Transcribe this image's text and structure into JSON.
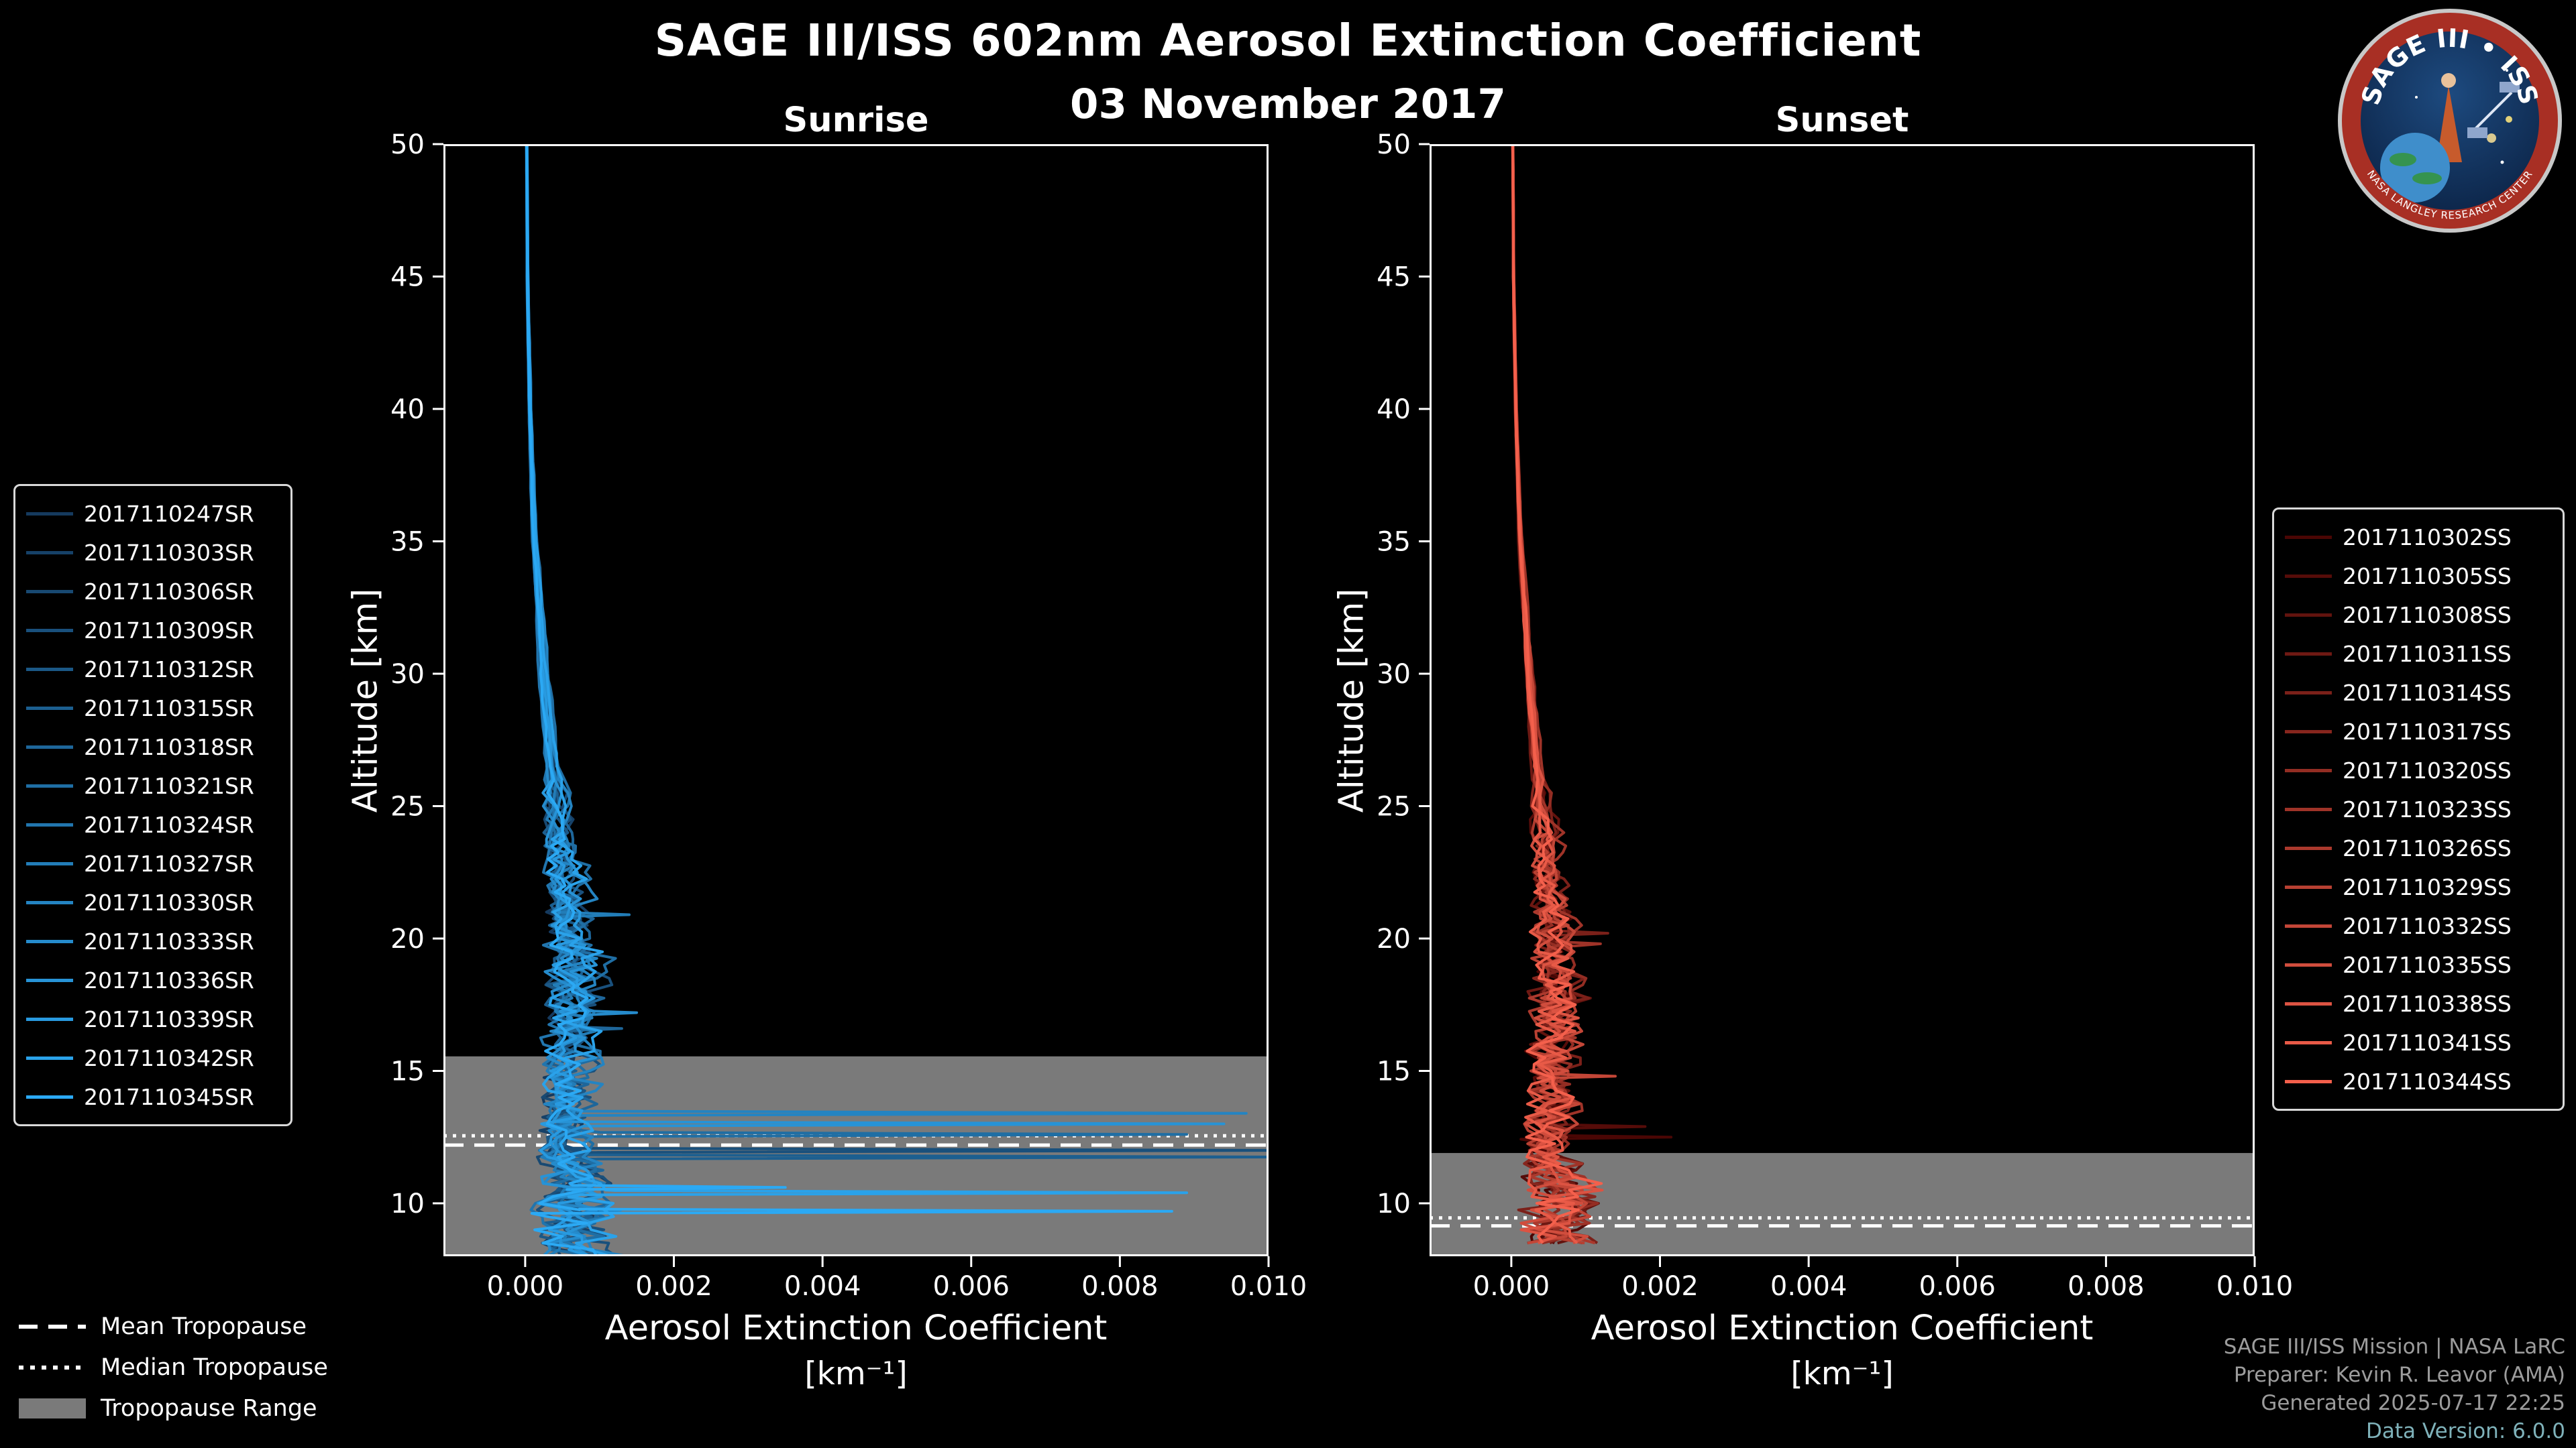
{
  "chart_data": {
    "type": "line",
    "title": "SAGE III/ISS 602nm Aerosol Extinction Coefficient",
    "subtitle": "03 November 2017",
    "style": {
      "background": "#000000",
      "axis_color": "#ffffff",
      "band_color": "#7a7a7a"
    },
    "base_profile": [
      [
        50,
        2e-05
      ],
      [
        45,
        3e-05
      ],
      [
        40,
        6e-05
      ],
      [
        35,
        0.00012
      ],
      [
        30,
        0.00024
      ],
      [
        27,
        0.00032
      ],
      [
        25,
        0.0004
      ],
      [
        23,
        0.00047
      ],
      [
        21,
        0.00054
      ],
      [
        20,
        0.00058
      ],
      [
        19,
        0.00062
      ],
      [
        18,
        0.00063
      ],
      [
        17,
        0.0006
      ],
      [
        16,
        0.00055
      ],
      [
        15,
        0.00052
      ],
      [
        14,
        0.00056
      ],
      [
        13,
        0.0005
      ],
      [
        12,
        0.00046
      ],
      [
        11,
        0.00058
      ],
      [
        10,
        0.0007
      ],
      [
        9,
        0.0006
      ],
      [
        8,
        0.00075
      ]
    ],
    "panels": [
      {
        "id": "sunrise",
        "title": "Sunrise",
        "xlabel": "Aerosol Extinction Coefficient",
        "xunit": "[km⁻¹]",
        "ylabel": "Altitude [km]",
        "xlim": [
          -0.0011,
          0.01
        ],
        "ylim": [
          8,
          50
        ],
        "alt_min": 8.0,
        "xtick_values": [
          0,
          0.002,
          0.004,
          0.006,
          0.008,
          0.01
        ],
        "xtick_labels": [
          "0.000",
          "0.002",
          "0.004",
          "0.006",
          "0.008",
          "0.010"
        ],
        "ytick_values": [
          10,
          15,
          20,
          25,
          30,
          35,
          40,
          45,
          50
        ],
        "tropopause": {
          "range_km": [
            8,
            15.55
          ],
          "mean_km": 12.2,
          "median_km": 12.55
        },
        "series": [
          {
            "name": "2017110247SR",
            "color": "#153a5e",
            "mult": 0.95,
            "seed": 1,
            "spikes": []
          },
          {
            "name": "2017110303SR",
            "color": "#164168",
            "mult": 1.1,
            "seed": 2,
            "spikes": []
          },
          {
            "name": "2017110306SR",
            "color": "#184972",
            "mult": 0.85,
            "seed": 3,
            "spikes": []
          },
          {
            "name": "2017110309SR",
            "color": "#19507c",
            "mult": 1.2,
            "seed": 4,
            "spikes": [
              [
                12.0,
                0.0102
              ]
            ]
          },
          {
            "name": "2017110312SR",
            "color": "#1b5886",
            "mult": 1.0,
            "seed": 5,
            "spikes": []
          },
          {
            "name": "2017110315SR",
            "color": "#1c5f90",
            "mult": 0.9,
            "seed": 6,
            "spikes": [
              [
                11.75,
                0.0102
              ]
            ]
          },
          {
            "name": "2017110318SR",
            "color": "#1e669a",
            "mult": 1.15,
            "seed": 7,
            "spikes": [
              [
                16.6,
                0.0013
              ]
            ]
          },
          {
            "name": "2017110321SR",
            "color": "#1f6ea4",
            "mult": 1.3,
            "seed": 8,
            "spikes": [
              [
                12.6,
                0.0089
              ]
            ]
          },
          {
            "name": "2017110324SR",
            "color": "#2175ae",
            "mult": 0.8,
            "seed": 9,
            "spikes": []
          },
          {
            "name": "2017110327SR",
            "color": "#227db8",
            "mult": 1.05,
            "seed": 10,
            "spikes": [
              [
                20.9,
                0.0014
              ]
            ]
          },
          {
            "name": "2017110330SR",
            "color": "#2484c2",
            "mult": 1.25,
            "seed": 11,
            "spikes": [
              [
                13.4,
                0.0097
              ]
            ]
          },
          {
            "name": "2017110333SR",
            "color": "#258bcc",
            "mult": 0.9,
            "seed": 12,
            "spikes": [
              [
                17.2,
                0.0015
              ]
            ]
          },
          {
            "name": "2017110336SR",
            "color": "#2793d6",
            "mult": 1.1,
            "seed": 13,
            "spikes": [
              [
                13.0,
                0.0094
              ]
            ]
          },
          {
            "name": "2017110339SR",
            "color": "#289ae0",
            "mult": 1.0,
            "seed": 14,
            "spikes": []
          },
          {
            "name": "2017110342SR",
            "color": "#2aa2ea",
            "mult": 1.2,
            "seed": 15,
            "spikes": [
              [
                10.4,
                0.0089
              ]
            ]
          },
          {
            "name": "2017110345SR",
            "color": "#2ba9f4",
            "mult": 0.95,
            "seed": 16,
            "spikes": [
              [
                9.7,
                0.0087
              ],
              [
                10.6,
                0.0035
              ]
            ]
          }
        ]
      },
      {
        "id": "sunset",
        "title": "Sunset",
        "xlabel": "Aerosol Extinction Coefficient",
        "xunit": "[km⁻¹]",
        "ylabel": "Altitude [km]",
        "xlim": [
          -0.0011,
          0.01
        ],
        "ylim": [
          8,
          50
        ],
        "alt_min": 8.35,
        "xtick_values": [
          0,
          0.002,
          0.004,
          0.006,
          0.008,
          0.01
        ],
        "xtick_labels": [
          "0.000",
          "0.002",
          "0.004",
          "0.006",
          "0.008",
          "0.010"
        ],
        "ytick_values": [
          10,
          15,
          20,
          25,
          30,
          35,
          40,
          45,
          50
        ],
        "tropopause": {
          "range_km": [
            8,
            11.9
          ],
          "mean_km": 9.15,
          "median_km": 9.45
        },
        "series": [
          {
            "name": "2017110302SS",
            "color": "#4a0604",
            "mult": 1.0,
            "seed": 21,
            "spikes": [
              [
                12.5,
                0.00215
              ]
            ]
          },
          {
            "name": "2017110305SS",
            "color": "#560c09",
            "mult": 0.9,
            "seed": 22,
            "spikes": [
              [
                12.9,
                0.0018
              ]
            ]
          },
          {
            "name": "2017110308SS",
            "color": "#62130e",
            "mult": 1.1,
            "seed": 23,
            "spikes": []
          },
          {
            "name": "2017110311SS",
            "color": "#6e1913",
            "mult": 0.85,
            "seed": 24,
            "spikes": []
          },
          {
            "name": "2017110314SS",
            "color": "#7b2019",
            "mult": 1.15,
            "seed": 25,
            "spikes": [
              [
                20.2,
                0.0013
              ]
            ]
          },
          {
            "name": "2017110317SS",
            "color": "#87261e",
            "mult": 0.95,
            "seed": 26,
            "spikes": []
          },
          {
            "name": "2017110320SS",
            "color": "#932d23",
            "mult": 1.05,
            "seed": 27,
            "spikes": []
          },
          {
            "name": "2017110323SS",
            "color": "#9f3328",
            "mult": 1.2,
            "seed": 28,
            "spikes": [
              [
                19.8,
                0.0012
              ]
            ]
          },
          {
            "name": "2017110326SS",
            "color": "#ab392d",
            "mult": 0.9,
            "seed": 29,
            "spikes": []
          },
          {
            "name": "2017110329SS",
            "color": "#b74032",
            "mult": 1.0,
            "seed": 30,
            "spikes": []
          },
          {
            "name": "2017110332SS",
            "color": "#c34637",
            "mult": 1.1,
            "seed": 31,
            "spikes": [
              [
                14.8,
                0.0014
              ]
            ]
          },
          {
            "name": "2017110335SS",
            "color": "#d04d3d",
            "mult": 0.95,
            "seed": 32,
            "spikes": []
          },
          {
            "name": "2017110338SS",
            "color": "#dc5342",
            "mult": 1.05,
            "seed": 33,
            "spikes": []
          },
          {
            "name": "2017110341SS",
            "color": "#e85a47",
            "mult": 0.9,
            "seed": 34,
            "spikes": []
          },
          {
            "name": "2017110344SS",
            "color": "#f4604c",
            "mult": 1.0,
            "seed": 35,
            "spikes": []
          }
        ]
      }
    ]
  },
  "tropopause_legend": [
    {
      "label": "Mean Tropopause",
      "style": "dashed"
    },
    {
      "label": "Median Tropopause",
      "style": "dotted"
    },
    {
      "label": "Tropopause Range",
      "style": "band"
    }
  ],
  "credits": [
    "SAGE III/ISS Mission | NASA LaRC",
    "Preparer: Kevin R. Leavor (AMA)",
    "Generated 2025-07-17 22:25",
    "Data Version: 6.0.0"
  ],
  "logo": {
    "title": "SAGE III • ISS",
    "ring_text": "NASA LANGLEY RESEARCH CENTER"
  }
}
